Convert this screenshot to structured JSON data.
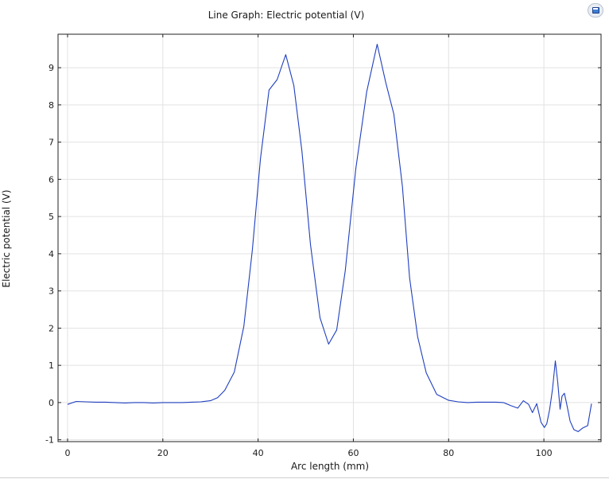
{
  "chart_data": {
    "type": "line",
    "title": "Line Graph: Electric potential (V)",
    "xlabel": "Arc length (mm)",
    "ylabel": "Electric potential (V)",
    "xlim": [
      -2,
      112
    ],
    "ylim": [
      -1.05,
      9.9
    ],
    "x_ticks": [
      0,
      20,
      40,
      60,
      80,
      100
    ],
    "y_ticks": [
      -1,
      0,
      1,
      2,
      3,
      4,
      5,
      6,
      7,
      8,
      9
    ],
    "grid": true,
    "legend": "none",
    "series": [
      {
        "color": "#1f3fbf",
        "x": [
          0,
          1.8,
          4,
          6,
          8,
          10,
          12,
          14,
          16,
          18,
          20,
          22,
          24,
          26,
          28,
          30,
          31.5,
          33,
          35,
          37,
          38.8,
          40.5,
          42.3,
          44,
          45.8,
          47.5,
          49.2,
          51,
          53,
          54.8,
          56.5,
          58.3,
          60.5,
          62.8,
          65,
          66.8,
          68.5,
          70.3,
          71.8,
          73.5,
          75.3,
          77.5,
          80,
          82,
          84,
          86,
          88,
          90,
          91.5,
          93,
          94.5,
          95.7,
          96.8,
          97.6,
          98.5,
          99.4,
          100.1,
          100.6,
          101.2,
          101.8,
          102.4,
          102.9,
          103.4,
          103.8,
          104.3,
          104.8,
          105.5,
          106.3,
          107.2,
          108.2,
          109.2,
          110
        ],
        "y": [
          -0.05,
          0.03,
          0.02,
          0.01,
          0.01,
          0.0,
          -0.01,
          0.0,
          0.0,
          -0.01,
          0.0,
          0.0,
          0.0,
          0.01,
          0.02,
          0.05,
          0.13,
          0.33,
          0.82,
          2.05,
          4.1,
          6.55,
          8.4,
          8.68,
          9.35,
          8.52,
          6.75,
          4.25,
          2.28,
          1.57,
          1.95,
          3.55,
          6.28,
          8.35,
          9.63,
          8.6,
          7.75,
          5.8,
          3.35,
          1.77,
          0.8,
          0.22,
          0.06,
          0.02,
          0.0,
          0.01,
          0.01,
          0.01,
          0.0,
          -0.08,
          -0.15,
          0.05,
          -0.05,
          -0.27,
          -0.03,
          -0.53,
          -0.67,
          -0.57,
          -0.19,
          0.35,
          1.12,
          0.55,
          -0.18,
          0.17,
          0.25,
          -0.05,
          -0.5,
          -0.73,
          -0.78,
          -0.68,
          -0.62,
          -0.03
        ]
      }
    ]
  },
  "toolbar": {
    "export_icon": "image-export-icon"
  }
}
